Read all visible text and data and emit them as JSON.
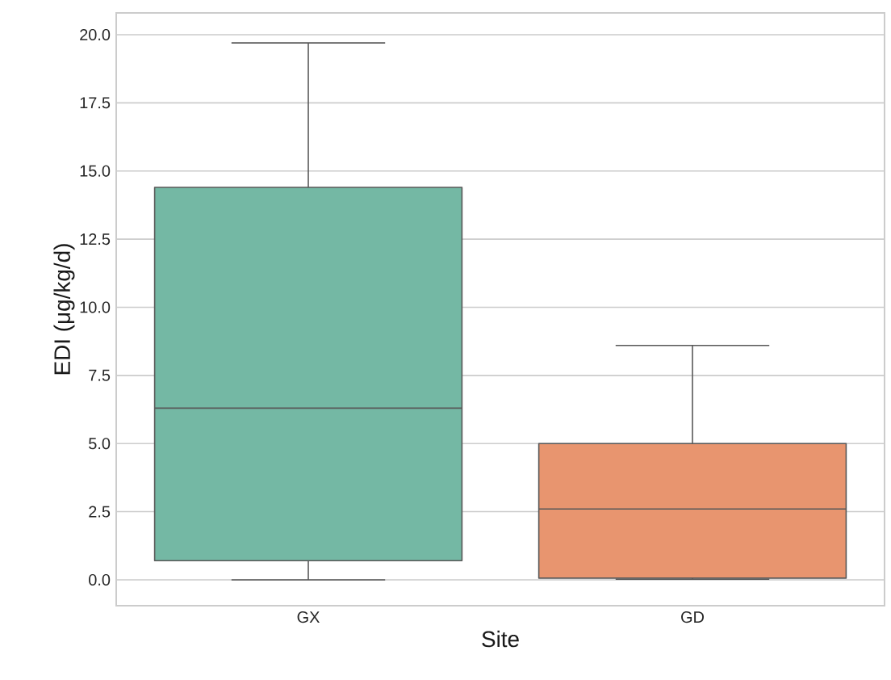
{
  "chart_data": {
    "type": "box",
    "xlabel": "Site",
    "ylabel": "EDI (μg/kg/d)",
    "categories": [
      "GX",
      "GD"
    ],
    "boxes": [
      {
        "low": 0.0,
        "q1": 0.7,
        "median": 6.3,
        "q3": 14.4,
        "high": 19.7
      },
      {
        "low": 0.02,
        "q1": 0.06,
        "median": 2.6,
        "q3": 5.0,
        "high": 8.6
      }
    ],
    "colors": [
      "#74b8a4",
      "#e8956f"
    ],
    "ylim": [
      -0.95,
      20.8
    ],
    "yticks": [
      {
        "value": 0,
        "label": "0.0"
      },
      {
        "value": 2.5,
        "label": "2.5"
      },
      {
        "value": 5,
        "label": "5.0"
      },
      {
        "value": 7.5,
        "label": "7.5"
      },
      {
        "value": 10,
        "label": "10.0"
      },
      {
        "value": 12.5,
        "label": "12.5"
      },
      {
        "value": 15,
        "label": "15.0"
      },
      {
        "value": 17.5,
        "label": "17.5"
      },
      {
        "value": 20,
        "label": "20.0"
      }
    ],
    "grid": "y"
  }
}
